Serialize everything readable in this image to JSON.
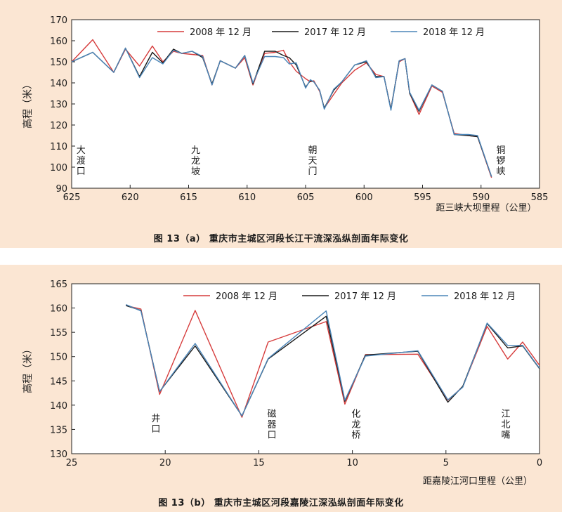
{
  "chart_data": [
    {
      "type": "line",
      "caption": "图 13（a） 重庆市主城区河段长江干流深泓纵剖面年际变化",
      "xlabel": "距三峡大坝里程（公里）",
      "ylabel": "高程（米）",
      "xlim": [
        625,
        585
      ],
      "ylim": [
        90,
        170
      ],
      "xticks": [
        625,
        620,
        615,
        610,
        605,
        600,
        595,
        590,
        585
      ],
      "yticks": [
        90,
        100,
        110,
        120,
        130,
        140,
        150,
        160,
        170
      ],
      "legend_position": "top",
      "grid": false,
      "series": [
        {
          "name": "2008 年 12 月",
          "color": "#d63c3c",
          "x": [
            625,
            623.2,
            621.4,
            620.4,
            619.2,
            618.1,
            617.2,
            616.3,
            615.6,
            614.7,
            613.8,
            613,
            612.3,
            611,
            610.2,
            609.5,
            608.5,
            607.6,
            606.9,
            606.4,
            605.8,
            605,
            604.6,
            604.3,
            603.8,
            603.4,
            602.6,
            601.9,
            600.8,
            599.8,
            599,
            598.3,
            597.7,
            597,
            596.5,
            596.1,
            595.3,
            594.2,
            593.3,
            592.3,
            591.1,
            590.3,
            589.1
          ],
          "y": [
            150,
            160.5,
            145,
            156,
            148,
            157.5,
            150,
            155,
            154,
            153.5,
            153,
            139,
            150.5,
            147,
            152,
            139,
            154,
            154.5,
            155.5,
            150,
            145.5,
            142,
            140.5,
            141,
            136,
            128,
            134.5,
            140,
            146,
            149.5,
            144,
            143,
            127.5,
            150,
            151.5,
            135,
            125,
            138.5,
            135.5,
            116,
            115,
            114.5,
            95
          ]
        },
        {
          "name": "2017 年 12 月",
          "color": "#1a1a1a",
          "x": [
            625,
            623.2,
            621.4,
            620.4,
            619.2,
            618.1,
            617.2,
            616.3,
            615.6,
            614.7,
            613.8,
            613,
            612.3,
            611,
            610.2,
            609.5,
            608.5,
            607.6,
            606.9,
            606.4,
            605.8,
            605,
            604.6,
            604.3,
            603.8,
            603.4,
            602.6,
            601.9,
            600.8,
            599.8,
            599,
            598.3,
            597.7,
            597,
            596.5,
            596.1,
            595.3,
            594.2,
            593.3,
            592.3,
            591.1,
            590.3,
            589.1
          ],
          "y": [
            150,
            154.5,
            145,
            156.5,
            143,
            154.5,
            149.5,
            156,
            154,
            155,
            152,
            139.5,
            150.5,
            147,
            153,
            139.5,
            155,
            155,
            153,
            152,
            148.5,
            138,
            141,
            140.5,
            136.5,
            128,
            136.5,
            140.5,
            148.5,
            150,
            143,
            143,
            127.5,
            150.5,
            151.5,
            135,
            126.5,
            139,
            136,
            115.5,
            115,
            114.5,
            95.5
          ]
        },
        {
          "name": "2018 年 12 月",
          "color": "#4b85b8",
          "x": [
            625,
            623.2,
            621.4,
            620.4,
            619.2,
            618.1,
            617.2,
            616.3,
            615.6,
            614.7,
            613.8,
            613,
            612.3,
            611,
            610.2,
            609.5,
            608.5,
            607.6,
            606.9,
            606.4,
            605.8,
            605,
            604.6,
            604.3,
            603.8,
            603.4,
            602.6,
            601.9,
            600.8,
            599.8,
            599,
            598.3,
            597.7,
            597,
            596.5,
            596.1,
            595.3,
            594.2,
            593.3,
            592.3,
            591.1,
            590.3,
            589.1
          ],
          "y": [
            150,
            154.5,
            145,
            156.5,
            142.5,
            152,
            149,
            155.5,
            154,
            155,
            152.5,
            139,
            150.5,
            147,
            153,
            140,
            152.5,
            152.5,
            152,
            149,
            149.5,
            137.5,
            141.5,
            140.5,
            136.5,
            127.5,
            137,
            140.5,
            148.5,
            150.5,
            142.5,
            143,
            127,
            150.5,
            151.5,
            135.5,
            127,
            139,
            136,
            115.5,
            115.5,
            115,
            95.5
          ]
        }
      ],
      "annotations": [
        {
          "text": "大渡口",
          "x": 624.2,
          "y_top": 111
        },
        {
          "text": "九龙坡",
          "x": 614.4,
          "y_top": 111
        },
        {
          "text": "朝天门",
          "x": 604.4,
          "y_top": 111
        },
        {
          "text": "铜锣峡",
          "x": 588.3,
          "y_top": 111
        }
      ]
    },
    {
      "type": "line",
      "caption": "图 13（b） 重庆市主城区河段嘉陵江深泓纵剖面年际变化",
      "xlabel": "距嘉陵江河口里程（公里）",
      "ylabel": "高程（米）",
      "xlim": [
        25,
        0
      ],
      "ylim": [
        130,
        165
      ],
      "xticks": [
        25,
        20,
        15,
        10,
        5,
        0
      ],
      "yticks": [
        130,
        135,
        140,
        145,
        150,
        155,
        160,
        165
      ],
      "legend_position": "top",
      "grid": false,
      "series": [
        {
          "name": "2008 年 12 月",
          "color": "#d63c3c",
          "x": [
            22.1,
            21.3,
            20.3,
            18.4,
            15.9,
            14.5,
            11.4,
            10.4,
            9.3,
            6.5,
            4.9,
            4.1,
            2.8,
            1.7,
            0.9,
            0
          ],
          "y": [
            160.5,
            159.8,
            142.2,
            159.5,
            137.5,
            153,
            157.2,
            140.2,
            150.4,
            150.5,
            141,
            143.8,
            156.2,
            149.5,
            153,
            148.2
          ]
        },
        {
          "name": "2017 年 12 月",
          "color": "#1a1a1a",
          "x": [
            22.1,
            21.3,
            20.3,
            18.4,
            15.9,
            14.5,
            11.4,
            10.4,
            9.3,
            6.5,
            4.9,
            4.1,
            2.8,
            1.7,
            0.9,
            0
          ],
          "y": [
            160.5,
            159.5,
            142.8,
            152.2,
            137.8,
            149.5,
            158.3,
            140.8,
            150.3,
            151.1,
            140.6,
            143.9,
            156.8,
            151.8,
            152.2,
            147.5
          ]
        },
        {
          "name": "2018 年 12 月",
          "color": "#4b85b8",
          "x": [
            22.1,
            21.3,
            20.3,
            18.4,
            15.9,
            14.5,
            11.4,
            10.4,
            9.3,
            6.5,
            4.9,
            4.1,
            2.8,
            1.7,
            0.9,
            0
          ],
          "y": [
            160.7,
            159.4,
            142.8,
            152.7,
            137.8,
            149.6,
            159.4,
            141,
            150.1,
            151.2,
            141.1,
            143.7,
            156.9,
            152.3,
            152.3,
            147.6
          ]
        }
      ],
      "annotations": [
        {
          "text": "井口",
          "x": 20.5,
          "y_top": 138.5
        },
        {
          "text": "磁器口",
          "x": 14.3,
          "y_top": 139.5
        },
        {
          "text": "化龙桥",
          "x": 9.8,
          "y_top": 139.5
        },
        {
          "text": "江北嘴",
          "x": 1.8,
          "y_top": 139.5
        }
      ]
    }
  ]
}
